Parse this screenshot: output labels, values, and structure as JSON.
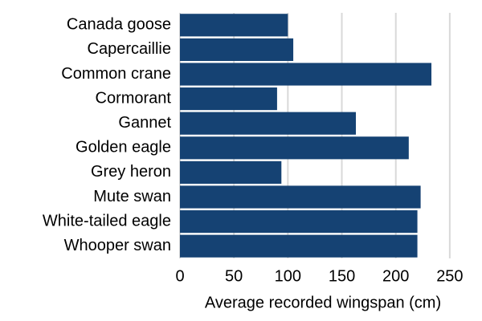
{
  "chart_data": {
    "type": "bar",
    "orientation": "horizontal",
    "categories": [
      "Canada goose",
      "Capercaillie",
      "Common crane",
      "Cormorant",
      "Gannet",
      "Golden eagle",
      "Grey heron",
      "Mute swan",
      "White-tailed eagle",
      "Whooper swan"
    ],
    "values": [
      100,
      105,
      233,
      90,
      163,
      212,
      94,
      223,
      220,
      220
    ],
    "color": "#154273",
    "x_label": "Average recorded wingspan (cm)",
    "xlim": [
      0,
      262
    ],
    "xticks": [
      0,
      50,
      100,
      150,
      200,
      250
    ],
    "grid": true
  }
}
